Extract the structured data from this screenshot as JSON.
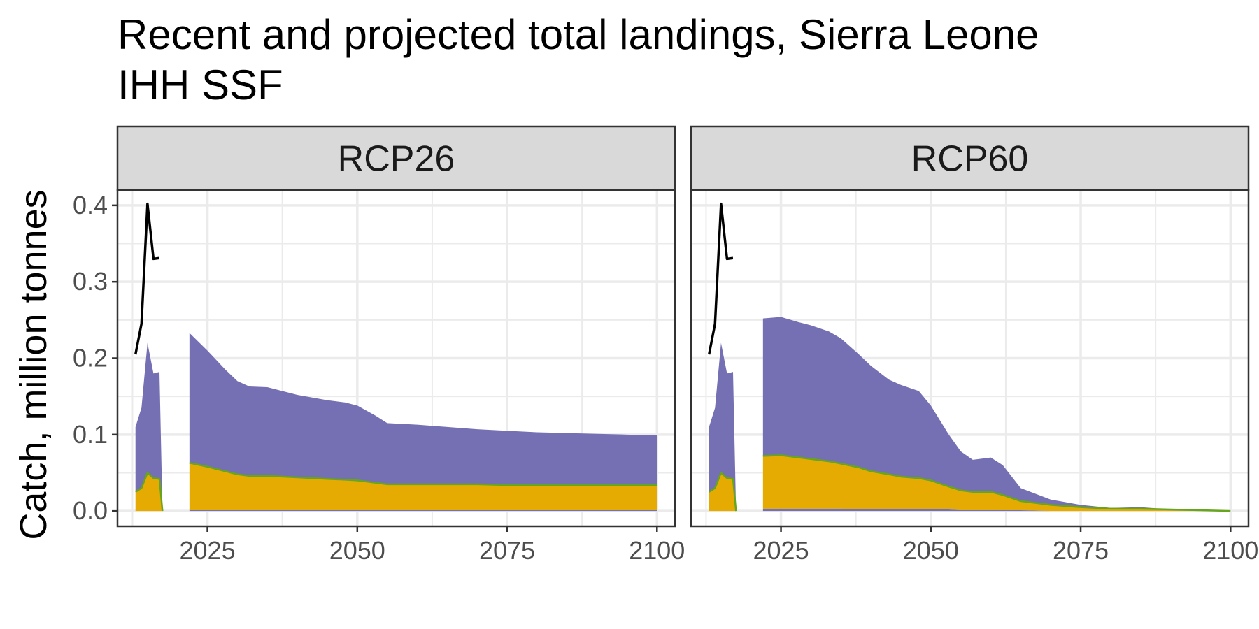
{
  "chart_data": {
    "type": "area",
    "title_line1": "Recent and projected total landings, Sierra Leone",
    "title_line2": "IHH SSF",
    "ylabel": "Catch, million tonnes",
    "xlabel": "",
    "xlim": [
      2010,
      2103
    ],
    "ylim": [
      -0.02,
      0.42
    ],
    "x_ticks": [
      2025,
      2050,
      2075,
      2100
    ],
    "x_tick_labels": [
      "2025",
      "2050",
      "2075",
      "2100"
    ],
    "y_ticks": [
      0.0,
      0.1,
      0.2,
      0.3,
      0.4
    ],
    "y_tick_labels": [
      "0.0",
      "0.1",
      "0.2",
      "0.3",
      "0.4"
    ],
    "grid": true,
    "legend": "none",
    "colors": {
      "upper": "#7570b3",
      "middle": "#e6ab02",
      "bottom": "#7570b3",
      "boundary": "#66a61e",
      "observed_line": "#000000",
      "strip_bg": "#d9d9d9",
      "grid": "#ebebeb"
    },
    "panels": [
      {
        "strip": "RCP26",
        "observed": {
          "x": [
            2013,
            2014,
            2015,
            2016,
            2017
          ],
          "y": [
            0.205,
            0.245,
            0.402,
            0.33,
            0.331
          ]
        },
        "recent": {
          "x": [
            2013,
            2014,
            2015,
            2016,
            2017,
            2017.5
          ],
          "bottom": [
            0,
            0,
            0,
            0,
            0,
            0
          ],
          "middle": [
            0.025,
            0.03,
            0.05,
            0.043,
            0.042,
            0
          ],
          "total": [
            0.11,
            0.135,
            0.22,
            0.18,
            0.182,
            0
          ]
        },
        "projection": {
          "x": [
            2022,
            2025,
            2028,
            2030,
            2032,
            2035,
            2040,
            2045,
            2048,
            2050,
            2053,
            2055,
            2060,
            2065,
            2070,
            2075,
            2080,
            2085,
            2090,
            2095,
            2100
          ],
          "bottom": [
            0.001,
            0.001,
            0.001,
            0.001,
            0.001,
            0.001,
            0.001,
            0.001,
            0.001,
            0.001,
            0.001,
            0.001,
            0.001,
            0.001,
            0.001,
            0.001,
            0.001,
            0.001,
            0.001,
            0.001,
            0.001
          ],
          "middle": [
            0.063,
            0.058,
            0.052,
            0.048,
            0.046,
            0.046,
            0.044,
            0.042,
            0.041,
            0.04,
            0.037,
            0.035,
            0.035,
            0.035,
            0.035,
            0.034,
            0.034,
            0.034,
            0.034,
            0.034,
            0.034
          ],
          "total": [
            0.233,
            0.21,
            0.185,
            0.17,
            0.163,
            0.162,
            0.152,
            0.145,
            0.142,
            0.138,
            0.125,
            0.115,
            0.113,
            0.11,
            0.107,
            0.105,
            0.103,
            0.102,
            0.101,
            0.1,
            0.099
          ]
        }
      },
      {
        "strip": "RCP60",
        "observed": {
          "x": [
            2013,
            2014,
            2015,
            2016,
            2017
          ],
          "y": [
            0.205,
            0.245,
            0.402,
            0.33,
            0.331
          ]
        },
        "recent": {
          "x": [
            2013,
            2014,
            2015,
            2016,
            2017,
            2017.5
          ],
          "bottom": [
            0,
            0,
            0,
            0,
            0,
            0
          ],
          "middle": [
            0.025,
            0.03,
            0.05,
            0.043,
            0.042,
            0
          ],
          "total": [
            0.11,
            0.135,
            0.22,
            0.18,
            0.182,
            0
          ]
        },
        "projection": {
          "x": [
            2022,
            2025,
            2028,
            2030,
            2033,
            2035,
            2038,
            2040,
            2043,
            2045,
            2048,
            2050,
            2053,
            2055,
            2057,
            2060,
            2062,
            2065,
            2070,
            2075,
            2080,
            2085,
            2090,
            2095,
            2100
          ],
          "bottom": [
            0.003,
            0.003,
            0.003,
            0.003,
            0.003,
            0.003,
            0.002,
            0.002,
            0.002,
            0.002,
            0.002,
            0.002,
            0.002,
            0.001,
            0.001,
            0.001,
            0.001,
            0.001,
            0.0,
            0.0,
            0.0,
            0.0,
            0.0,
            0.0,
            0.0
          ],
          "middle": [
            0.072,
            0.073,
            0.07,
            0.068,
            0.065,
            0.062,
            0.057,
            0.052,
            0.048,
            0.045,
            0.043,
            0.04,
            0.032,
            0.027,
            0.025,
            0.025,
            0.021,
            0.013,
            0.008,
            0.005,
            0.003,
            0.003,
            0.002,
            0.001,
            0.0
          ],
          "total": [
            0.252,
            0.254,
            0.247,
            0.243,
            0.235,
            0.226,
            0.205,
            0.19,
            0.172,
            0.165,
            0.157,
            0.138,
            0.1,
            0.078,
            0.067,
            0.07,
            0.06,
            0.03,
            0.015,
            0.008,
            0.004,
            0.005,
            0.002,
            0.001,
            0.0
          ]
        }
      }
    ]
  }
}
